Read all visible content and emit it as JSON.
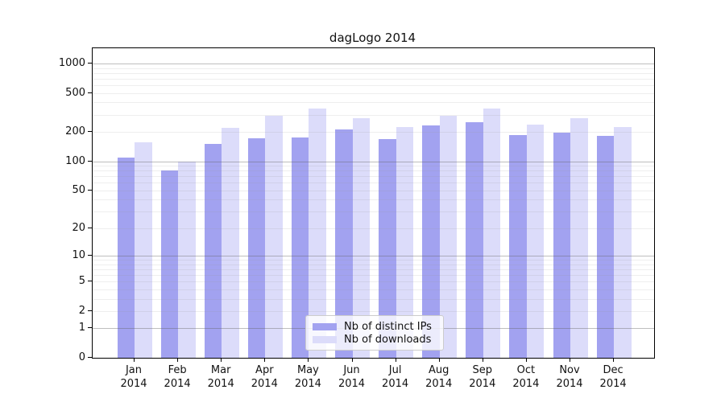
{
  "title": "dagLogo 2014",
  "colors": {
    "ips_bar": "#a2a2f0",
    "downloads_bar": "#dcdcfa",
    "grid_major": "#a8a8a8",
    "grid_minor": "#e2e2e2",
    "axis_line": "#000000",
    "legend_border": "#cccccc"
  },
  "legend": {
    "items": [
      {
        "label": "Nb of distinct IPs",
        "color_key": "ips_bar"
      },
      {
        "label": "Nb of downloads",
        "color_key": "downloads_bar"
      }
    ]
  },
  "axes": {
    "y_tick_values": [
      0,
      1,
      2,
      5,
      10,
      20,
      50,
      100,
      200,
      500,
      1000
    ],
    "y_major_gridlines": [
      1,
      10,
      100,
      1000
    ],
    "y_minor_gridlines": [
      2,
      3,
      4,
      5,
      6,
      7,
      8,
      9,
      20,
      30,
      40,
      50,
      60,
      70,
      80,
      90,
      200,
      300,
      400,
      500,
      600,
      700,
      800,
      900
    ],
    "x_tick_line1": [
      "Jan",
      "Feb",
      "Mar",
      "Apr",
      "May",
      "Jun",
      "Jul",
      "Aug",
      "Sep",
      "Oct",
      "Nov",
      "Dec"
    ],
    "x_tick_line2": "2014"
  },
  "chart_data": {
    "type": "bar",
    "title": "dagLogo 2014",
    "scale": "log1p",
    "categories": [
      "Jan 2014",
      "Feb 2014",
      "Mar 2014",
      "Apr 2014",
      "May 2014",
      "Jun 2014",
      "Jul 2014",
      "Aug 2014",
      "Sep 2014",
      "Oct 2014",
      "Nov 2014",
      "Dec 2014"
    ],
    "series": [
      {
        "name": "Nb of distinct IPs",
        "values": [
          110,
          80,
          150,
          172,
          176,
          210,
          168,
          234,
          250,
          184,
          196,
          181
        ]
      },
      {
        "name": "Nb of downloads",
        "values": [
          155,
          100,
          220,
          290,
          350,
          278,
          223,
          295,
          344,
          237,
          278,
          225
        ]
      }
    ],
    "xlabel": "",
    "ylabel": "",
    "ylim": [
      0,
      1430
    ],
    "grid": true,
    "legend_position": "bottom-center"
  }
}
